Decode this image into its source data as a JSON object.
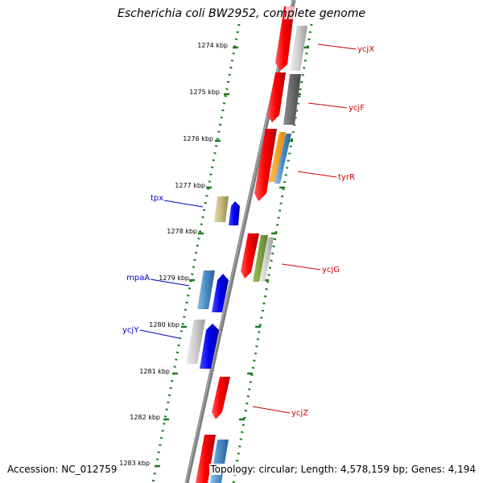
{
  "title": "Escherichia coli BW2952, complete genome",
  "accession": "Accession: NC_012759",
  "topology": "Topology: circular; Length: 4,578,159 bp; Genes: 4,194",
  "colors": {
    "axis": "#7f7f7f",
    "tick": "#1c7d1c",
    "label_forward": "#cc0000",
    "label_reverse": "#0000cc",
    "background": "#ffffff"
  },
  "scale_labels": [
    "1274 kbp",
    "1275 kbp",
    "1276 kbp",
    "1277 kbp",
    "1278 kbp",
    "1279 kbp",
    "1280 kbp",
    "1281 kbp",
    "1282 kbp",
    "1283 kbp"
  ],
  "gene_labels": [
    {
      "text": "ycjX",
      "strand": "forward"
    },
    {
      "text": "ycjF",
      "strand": "forward"
    },
    {
      "text": "tyrR",
      "strand": "forward"
    },
    {
      "text": "tpx",
      "strand": "reverse"
    },
    {
      "text": "ycjG",
      "strand": "forward"
    },
    {
      "text": "mpaA",
      "strand": "reverse"
    },
    {
      "text": "ycjY",
      "strand": "reverse"
    },
    {
      "text": "ycjZ",
      "strand": "forward"
    }
  ]
}
